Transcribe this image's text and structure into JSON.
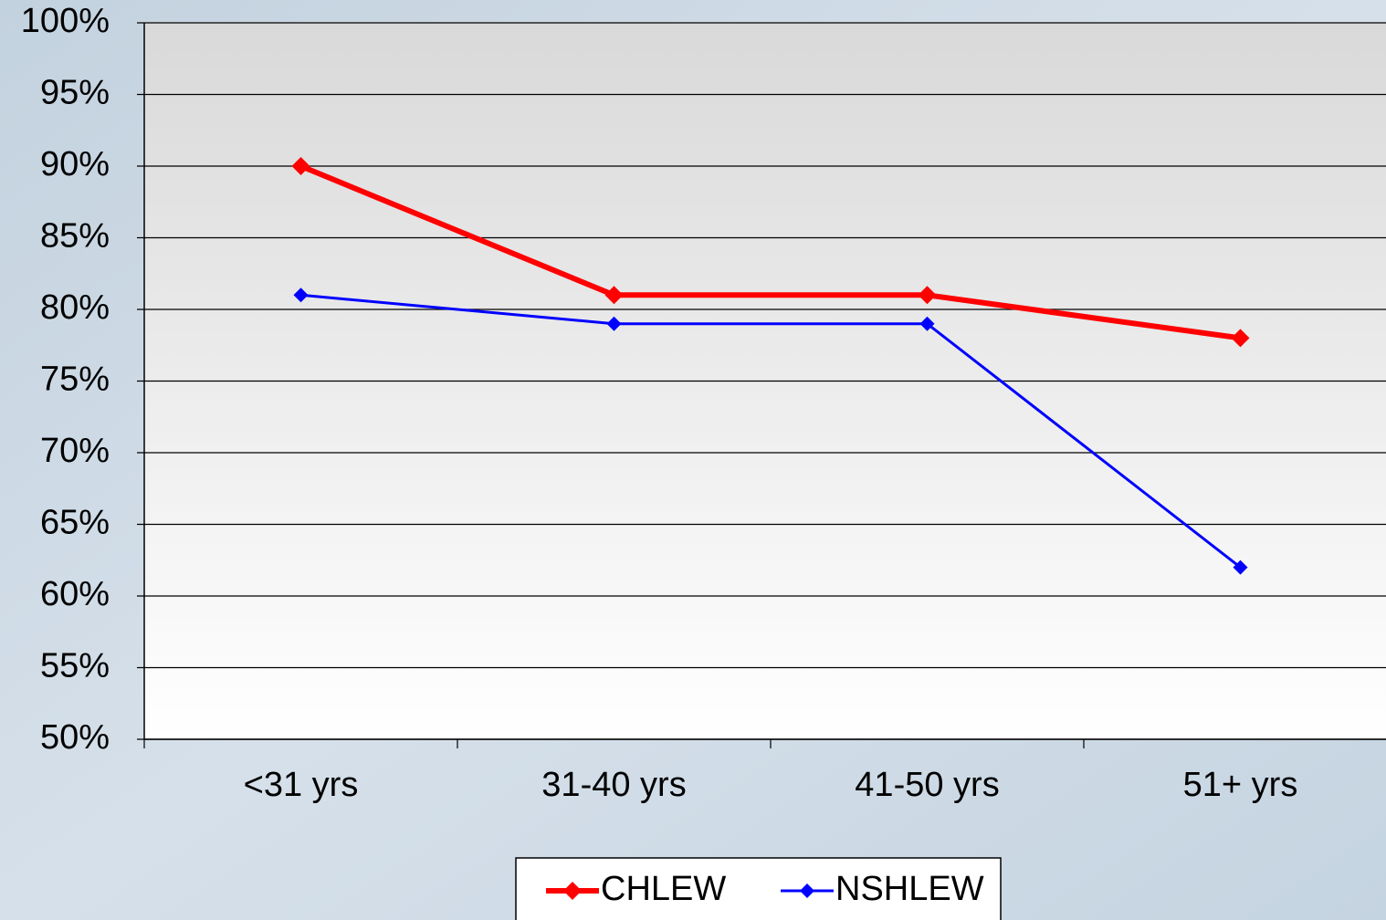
{
  "chart_data": {
    "type": "line",
    "categories": [
      "<31 yrs",
      "31-40 yrs",
      "41-50 yrs",
      "51+ yrs"
    ],
    "series": [
      {
        "name": "CHLEW",
        "color": "#ff0000",
        "values": [
          90,
          81,
          81,
          78
        ]
      },
      {
        "name": "NSHLEW",
        "color": "#0000ff",
        "values": [
          81,
          79,
          79,
          62
        ]
      }
    ],
    "ylim": [
      50,
      100
    ],
    "yticks": [
      {
        "value": 50,
        "label": "50%"
      },
      {
        "value": 55,
        "label": "55%"
      },
      {
        "value": 60,
        "label": "60%"
      },
      {
        "value": 65,
        "label": "65%"
      },
      {
        "value": 70,
        "label": "70%"
      },
      {
        "value": 75,
        "label": "75%"
      },
      {
        "value": 80,
        "label": "80%"
      },
      {
        "value": 85,
        "label": "85%"
      },
      {
        "value": 90,
        "label": "90%"
      },
      {
        "value": 95,
        "label": "95%"
      },
      {
        "value": 100,
        "label": "100%"
      }
    ],
    "grid": true,
    "legend": "bottom"
  }
}
